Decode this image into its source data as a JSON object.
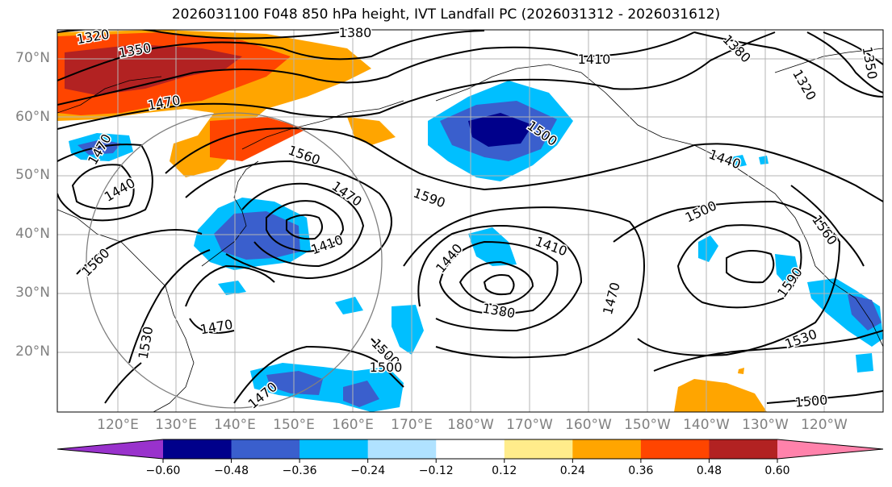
{
  "title": "2026031100 F048 850 hPa height, IVT Landfall PC (2026031312 - 2026031612)",
  "lat_labels": [
    "70°N",
    "60°N",
    "50°N",
    "40°N",
    "30°N",
    "20°N"
  ],
  "lon_labels": [
    "120°E",
    "130°E",
    "140°E",
    "150°E",
    "160°E",
    "170°E",
    "180°W",
    "170°W",
    "160°W",
    "150°W",
    "140°W",
    "130°W",
    "120°W"
  ],
  "contour_labels": [
    "1320",
    "1350",
    "1380",
    "1410",
    "1380",
    "1320",
    "1350",
    "1470",
    "1560",
    "1500",
    "1440",
    "1470",
    "1440",
    "1470",
    "1410",
    "1590",
    "1500",
    "1560",
    "1560",
    "1440",
    "1410",
    "1380",
    "1470",
    "1590",
    "1530",
    "1470",
    "1530",
    "1500",
    "1500",
    "1470",
    "1500"
  ],
  "colorbar": {
    "colors": [
      "#9932cc",
      "#00008b",
      "#3a5fcd",
      "#00bfff",
      "#b0e2ff",
      "#ffffff",
      "#ffec8b",
      "#ffa500",
      "#ff4500",
      "#b22222",
      "#ff82ab"
    ],
    "tick_labels": [
      "−0.60",
      "−0.48",
      "−0.36",
      "−0.24",
      "−0.12",
      "0.12",
      "0.24",
      "0.36",
      "0.48",
      "0.60"
    ]
  },
  "chart_data": {
    "type": "map",
    "variables": [
      "850 hPa geopotential height (m)",
      "IVT Landfall PC"
    ],
    "lat_range": [
      10,
      75
    ],
    "lon_range": [
      110,
      250
    ],
    "contour_interval": 30,
    "color_levels": [
      -0.6,
      -0.48,
      -0.36,
      -0.24,
      -0.12,
      0.12,
      0.24,
      0.36,
      0.48,
      0.6
    ]
  }
}
